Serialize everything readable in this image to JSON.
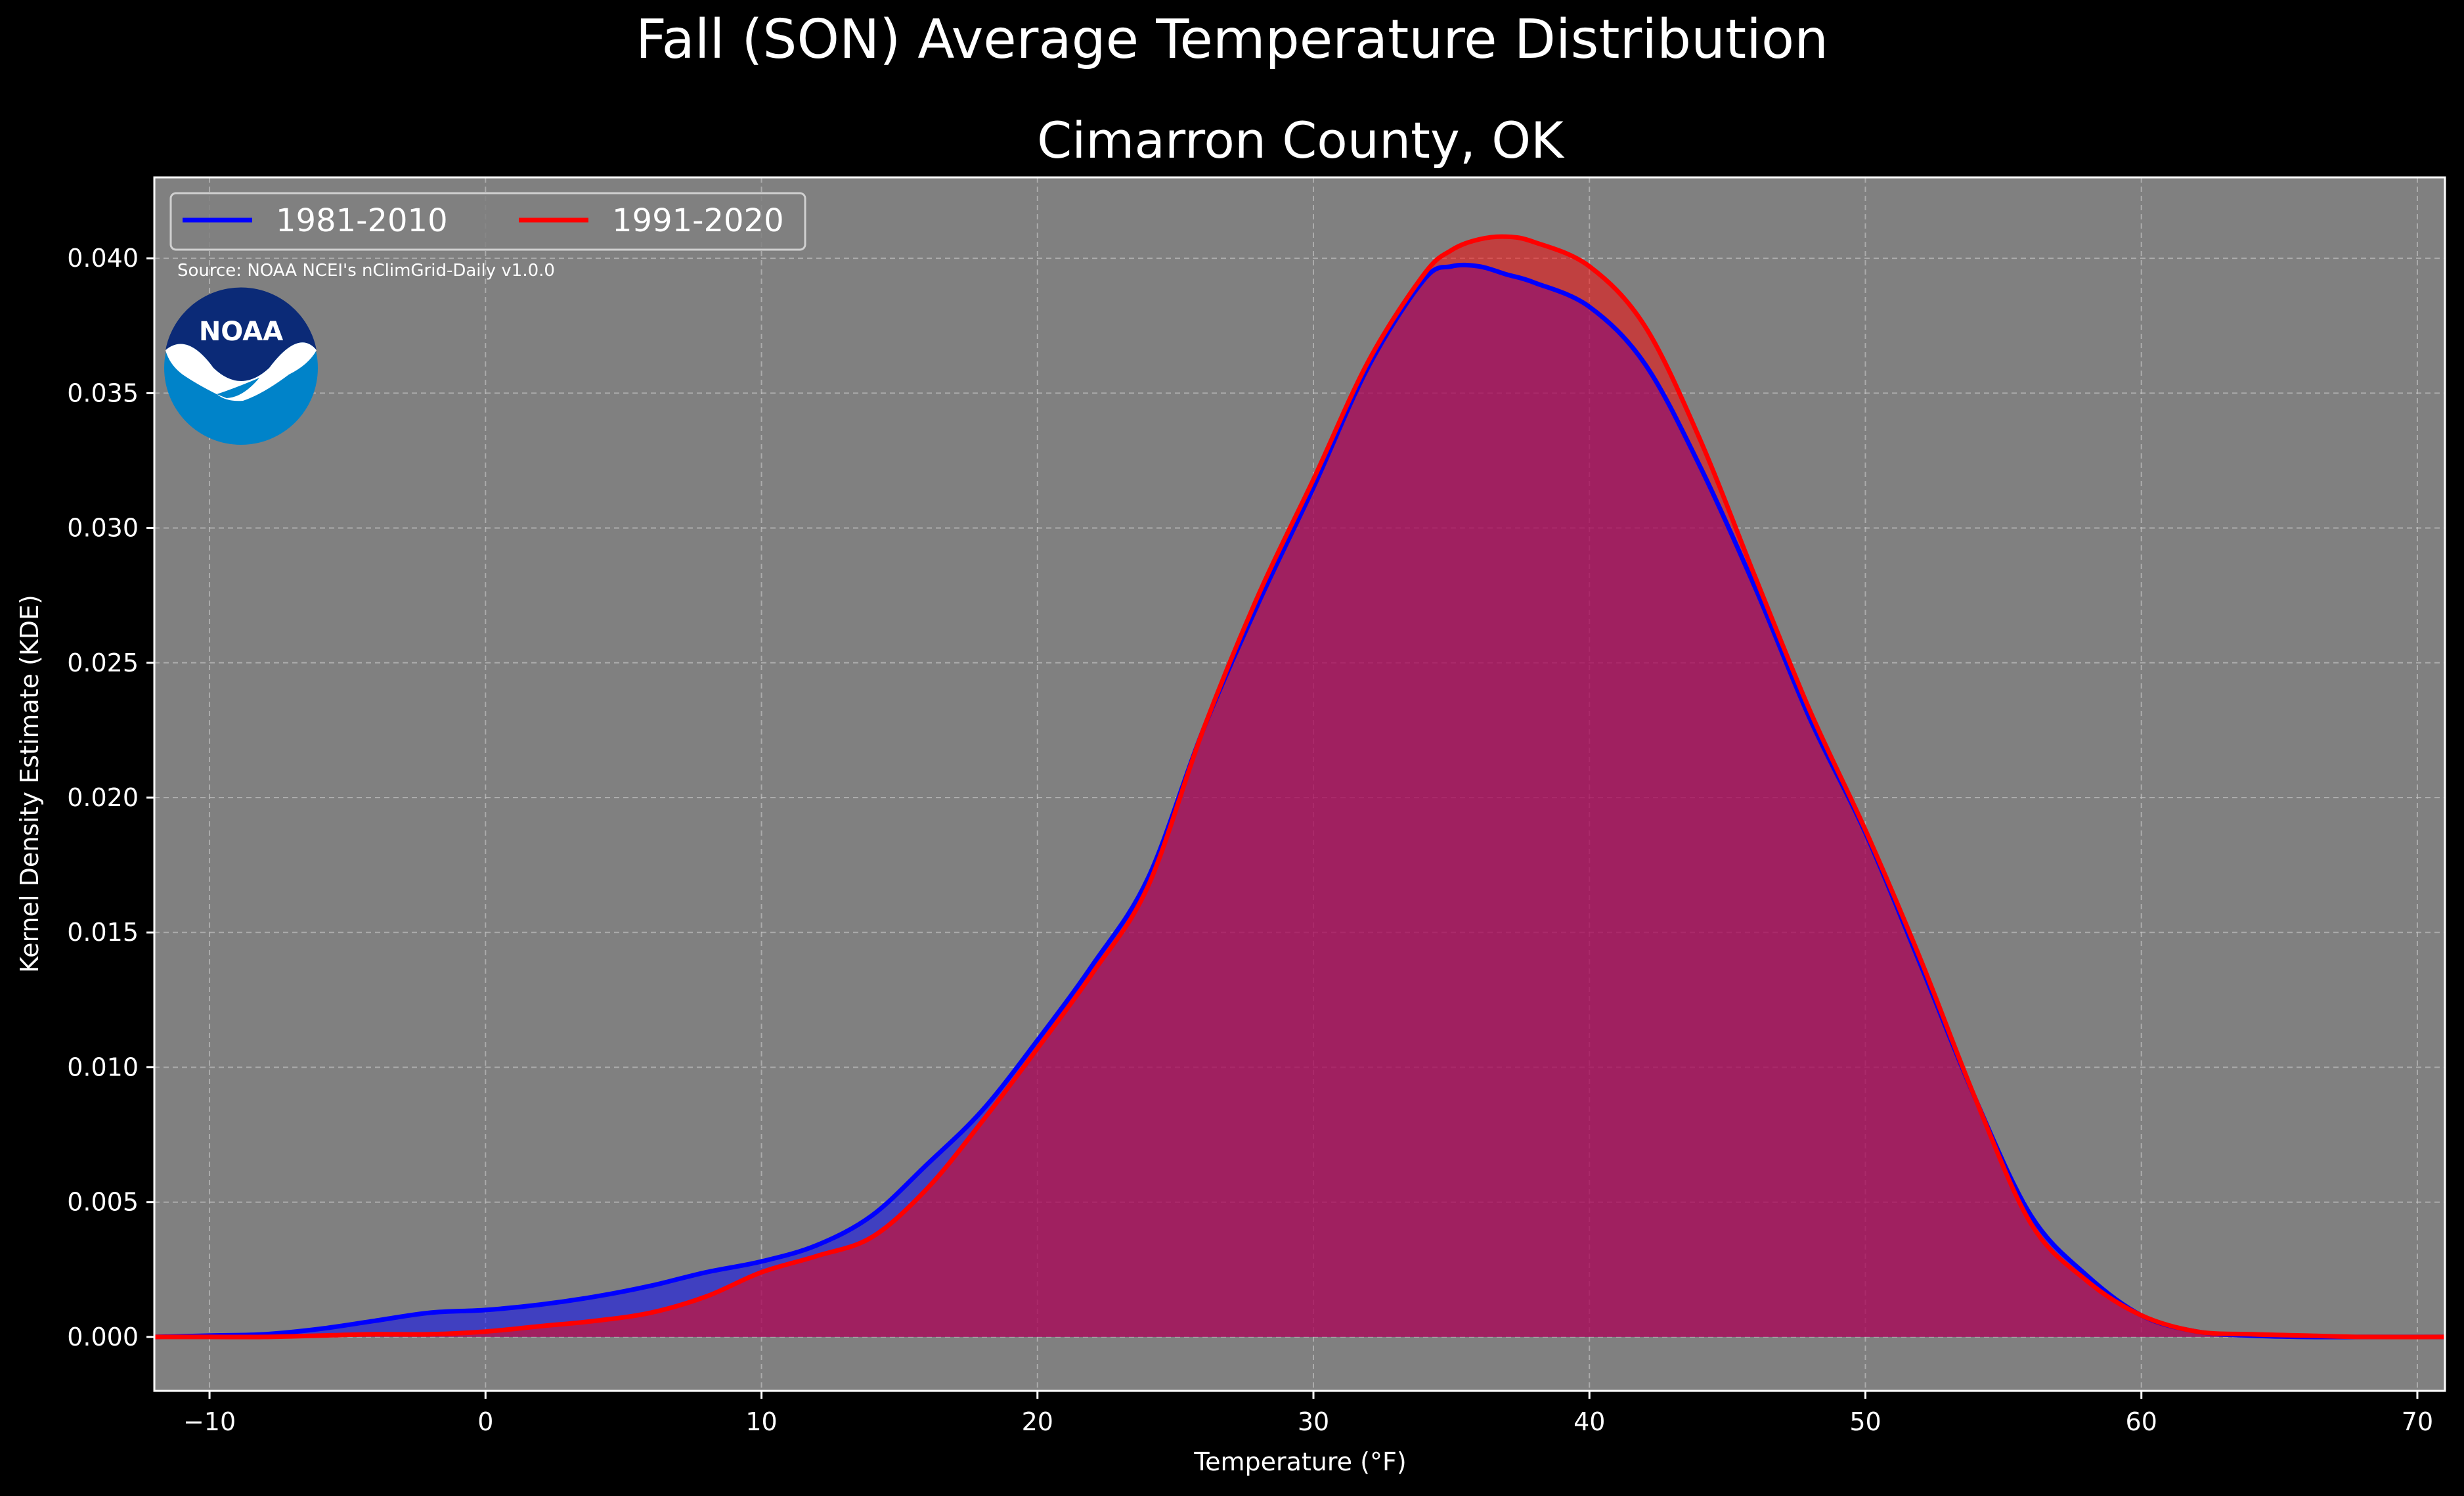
{
  "chart_data": {
    "type": "area",
    "suptitle": "Fall (SON) Average Temperature Distribution",
    "title": "Cimarron County, OK",
    "xlabel": "Temperature (°F)",
    "ylabel": "Kernel Density Estimate (KDE)",
    "source": "Source: NOAA NCEI's nClimGrid-Daily v1.0.0",
    "logo_text": "NOAA",
    "xlim": [
      -12,
      71
    ],
    "ylim": [
      -0.002,
      0.043
    ],
    "xticks": [
      -10,
      0,
      10,
      20,
      30,
      40,
      50,
      60,
      70
    ],
    "xtick_labels": [
      "−10",
      "0",
      "10",
      "20",
      "30",
      "40",
      "50",
      "60",
      "70"
    ],
    "yticks": [
      0.0,
      0.005,
      0.01,
      0.015,
      0.02,
      0.025,
      0.03,
      0.035,
      0.04
    ],
    "ytick_labels": [
      "0.000",
      "0.005",
      "0.010",
      "0.015",
      "0.020",
      "0.025",
      "0.030",
      "0.035",
      "0.040"
    ],
    "grid": true,
    "legend_position": "top-left",
    "background_color": "#808080",
    "figure_color": "#000000",
    "series": [
      {
        "name": "1981-2010",
        "color": "#0000ff",
        "fill_color": "#0000ff",
        "x": [
          -12,
          -10,
          -8,
          -6,
          -4,
          -2,
          0,
          2,
          4,
          6,
          8,
          10,
          12,
          14,
          16,
          18,
          20,
          22,
          24,
          26,
          28,
          30,
          32,
          34,
          35,
          36,
          37,
          38,
          40,
          42,
          44,
          46,
          48,
          50,
          52,
          54,
          56,
          58,
          60,
          62,
          64,
          66,
          68,
          71
        ],
        "y": [
          0.0,
          5e-05,
          0.0001,
          0.0003,
          0.0006,
          0.0009,
          0.001,
          0.0012,
          0.0015,
          0.0019,
          0.0024,
          0.0028,
          0.0034,
          0.0045,
          0.0064,
          0.0084,
          0.011,
          0.0138,
          0.017,
          0.0225,
          0.0272,
          0.0315,
          0.036,
          0.0392,
          0.0397,
          0.0397,
          0.0394,
          0.0391,
          0.0382,
          0.0361,
          0.0323,
          0.0278,
          0.0229,
          0.0187,
          0.0138,
          0.0088,
          0.0045,
          0.0023,
          0.0008,
          0.0002,
          5e-05,
          0.0,
          0.0,
          0.0
        ]
      },
      {
        "name": "1991-2020",
        "color": "#ff0000",
        "fill_color": "#ff0000",
        "x": [
          -12,
          -10,
          -8,
          -6,
          -4,
          -2,
          0,
          2,
          4,
          6,
          8,
          10,
          12,
          14,
          16,
          18,
          20,
          22,
          24,
          26,
          28,
          30,
          32,
          34,
          35,
          36,
          37,
          38,
          40,
          42,
          44,
          46,
          48,
          50,
          52,
          54,
          56,
          58,
          60,
          62,
          64,
          66,
          68,
          71
        ],
        "y": [
          0.0,
          0.0,
          0.0,
          5e-05,
          0.0001,
          0.0001,
          0.0002,
          0.0004,
          0.0006,
          0.0009,
          0.0015,
          0.0024,
          0.003,
          0.0037,
          0.0055,
          0.008,
          0.0107,
          0.0135,
          0.0167,
          0.0225,
          0.0275,
          0.0318,
          0.0362,
          0.0394,
          0.0403,
          0.0407,
          0.0408,
          0.0406,
          0.0397,
          0.0375,
          0.0333,
          0.0282,
          0.0232,
          0.0188,
          0.014,
          0.0088,
          0.0042,
          0.0021,
          0.0008,
          0.0002,
          0.0001,
          5e-05,
          0.0,
          0.0
        ]
      }
    ]
  }
}
